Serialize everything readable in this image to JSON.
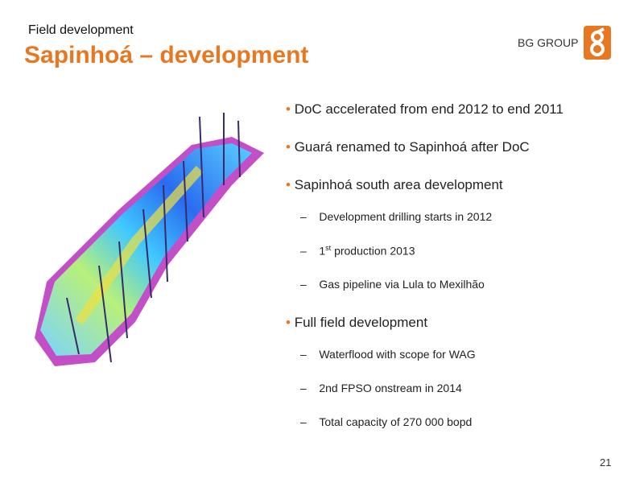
{
  "header": {
    "section": "Field development",
    "title": "Sapinhoá – development",
    "logo": "BG GROUP"
  },
  "bullets": [
    {
      "text": "DoC accelerated from end 2012 to end 2011"
    },
    {
      "text": "Guará renamed to Sapinhoá after DoC"
    },
    {
      "text": "Sapinhoá south area development",
      "sub": [
        {
          "text": "Development drilling starts in 2012"
        },
        {
          "number": "1",
          "superscript": "st",
          "text": "production 2013"
        },
        {
          "text": "Gas pipeline via Lula to Mexilhão"
        }
      ]
    },
    {
      "text": "Full field development",
      "sub": [
        {
          "text": "Waterflood with scope for WAG"
        },
        {
          "text": "2nd FPSO onstream in 2014"
        },
        {
          "text": "Total capacity of 270 000 bopd"
        }
      ]
    }
  ],
  "page_number": "21"
}
